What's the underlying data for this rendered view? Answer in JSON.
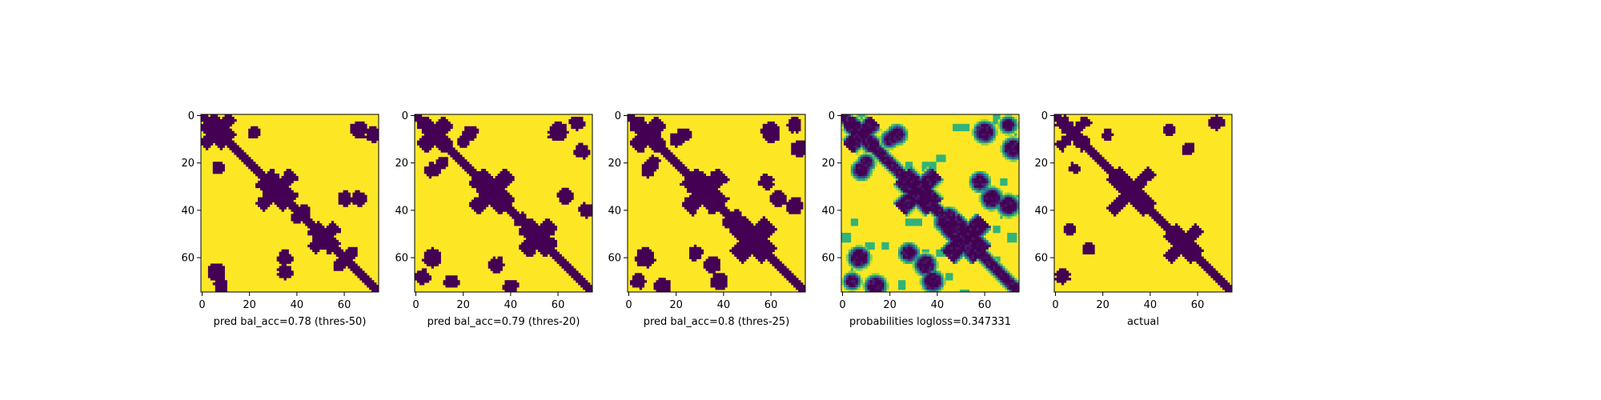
{
  "figure": {
    "panel_titles": [
      "pred bal_acc=0.78 (thres-50)",
      "pred bal_acc=0.79 (thres-20)",
      "pred bal_acc=0.8 (thres-25)",
      "probabilities logloss=0.347331",
      "actual"
    ]
  },
  "chart_data": [
    {
      "type": "heatmap",
      "title": "pred bal_acc=0.78 (thres-50)",
      "colormap": "viridis",
      "value_kind": "binary",
      "matrix_size": 75,
      "xlim": [
        0,
        74
      ],
      "ylim": [
        74,
        0
      ],
      "xticks": [
        0,
        20,
        40,
        60
      ],
      "yticks": [
        0,
        20,
        40,
        60
      ],
      "xlabel": "",
      "ylabel": "",
      "grid": false,
      "diagonal_band_halfwidth": 1.5,
      "features": [
        {
          "kind": "cross",
          "center": [
            5,
            8
          ],
          "arm": 5,
          "width": 1.5
        },
        {
          "kind": "cross",
          "center": [
            33,
            30
          ],
          "arm": 6,
          "width": 1.8
        },
        {
          "kind": "cross",
          "center": [
            52,
            51
          ],
          "arm": 5,
          "width": 1.8
        },
        {
          "kind": "blob",
          "center": [
            66,
            6
          ],
          "radius": 2.5
        },
        {
          "kind": "blob",
          "center": [
            22,
            7
          ],
          "radius": 1.5
        },
        {
          "kind": "blob",
          "center": [
            60,
            35
          ],
          "radius": 2
        },
        {
          "kind": "blob",
          "center": [
            8,
            72
          ],
          "radius": 2
        },
        {
          "kind": "blob",
          "center": [
            35,
            66
          ],
          "radius": 2
        },
        {
          "kind": "blob",
          "center": [
            40,
            43
          ],
          "radius": 1.5
        },
        {
          "kind": "blob",
          "center": [
            63,
            58
          ],
          "radius": 1.5
        }
      ]
    },
    {
      "type": "heatmap",
      "title": "pred bal_acc=0.79 (thres-20)",
      "colormap": "viridis",
      "value_kind": "binary",
      "matrix_size": 75,
      "xlim": [
        0,
        74
      ],
      "ylim": [
        74,
        0
      ],
      "xticks": [
        0,
        20,
        40,
        60
      ],
      "yticks": [
        0,
        20,
        40,
        60
      ],
      "xlabel": "",
      "ylabel": "",
      "grid": false,
      "diagonal_band_halfwidth": 1.7,
      "features": [
        {
          "kind": "cross",
          "center": [
            8,
            8
          ],
          "arm": 6,
          "width": 2.2
        },
        {
          "kind": "cross",
          "center": [
            33,
            31
          ],
          "arm": 7,
          "width": 2.2
        },
        {
          "kind": "cross",
          "center": [
            52,
            51
          ],
          "arm": 6,
          "width": 2.5
        },
        {
          "kind": "blob",
          "center": [
            60,
            7
          ],
          "radius": 3
        },
        {
          "kind": "blob",
          "center": [
            68,
            3
          ],
          "radius": 2
        },
        {
          "kind": "blob",
          "center": [
            23,
            7
          ],
          "radius": 2
        },
        {
          "kind": "blob",
          "center": [
            7,
            60
          ],
          "radius": 2.5
        },
        {
          "kind": "blob",
          "center": [
            63,
            34
          ],
          "radius": 2.2
        },
        {
          "kind": "blob",
          "center": [
            15,
            70
          ],
          "radius": 2
        },
        {
          "kind": "blob",
          "center": [
            40,
            72
          ],
          "radius": 2
        },
        {
          "kind": "blob",
          "center": [
            44,
            44
          ],
          "radius": 2
        },
        {
          "kind": "blob",
          "center": [
            11,
            20
          ],
          "radius": 1.5
        }
      ]
    },
    {
      "type": "heatmap",
      "title": "pred bal_acc=0.8 (thres-25)",
      "colormap": "viridis",
      "value_kind": "binary",
      "matrix_size": 75,
      "xlim": [
        0,
        74
      ],
      "ylim": [
        74,
        0
      ],
      "xticks": [
        0,
        20,
        40,
        60
      ],
      "yticks": [
        0,
        20,
        40,
        60
      ],
      "xlabel": "",
      "ylabel": "",
      "grid": false,
      "diagonal_band_halfwidth": 1.8,
      "features": [
        {
          "kind": "cross",
          "center": [
            8,
            8
          ],
          "arm": 6,
          "width": 2.5
        },
        {
          "kind": "cross",
          "center": [
            33,
            31
          ],
          "arm": 7,
          "width": 2.5
        },
        {
          "kind": "cross",
          "center": [
            53,
            52
          ],
          "arm": 7,
          "width": 3
        },
        {
          "kind": "blob",
          "center": [
            60,
            7
          ],
          "radius": 3
        },
        {
          "kind": "blob",
          "center": [
            70,
            4
          ],
          "radius": 2
        },
        {
          "kind": "blob",
          "center": [
            23,
            8
          ],
          "radius": 2
        },
        {
          "kind": "blob",
          "center": [
            7,
            60
          ],
          "radius": 3
        },
        {
          "kind": "blob",
          "center": [
            63,
            35
          ],
          "radius": 2.5
        },
        {
          "kind": "blob",
          "center": [
            14,
            72
          ],
          "radius": 2.5
        },
        {
          "kind": "blob",
          "center": [
            38,
            70
          ],
          "radius": 2.5
        },
        {
          "kind": "blob",
          "center": [
            45,
            43
          ],
          "radius": 2
        },
        {
          "kind": "blob",
          "center": [
            28,
            58
          ],
          "radius": 2
        },
        {
          "kind": "blob",
          "center": [
            10,
            20
          ],
          "radius": 1.8
        }
      ]
    },
    {
      "type": "heatmap",
      "title": "probabilities logloss=0.347331",
      "colormap": "viridis",
      "value_kind": "continuous",
      "value_range": [
        0,
        1
      ],
      "matrix_size": 75,
      "xlim": [
        0,
        74
      ],
      "ylim": [
        74,
        0
      ],
      "xticks": [
        0,
        20,
        40,
        60
      ],
      "yticks": [
        0,
        20,
        40,
        60
      ],
      "xlabel": "",
      "ylabel": "",
      "grid": false,
      "diagonal_band_halfwidth": 2.5,
      "features": [
        {
          "kind": "cross",
          "center": [
            8,
            8
          ],
          "arm": 6,
          "width": 2.5
        },
        {
          "kind": "cross",
          "center": [
            33,
            31
          ],
          "arm": 7,
          "width": 2.5
        },
        {
          "kind": "cross",
          "center": [
            53,
            51
          ],
          "arm": 7,
          "width": 3
        },
        {
          "kind": "blob",
          "center": [
            60,
            7
          ],
          "radius": 3
        },
        {
          "kind": "blob",
          "center": [
            70,
            4
          ],
          "radius": 2
        },
        {
          "kind": "blob",
          "center": [
            23,
            8
          ],
          "radius": 2.5
        },
        {
          "kind": "blob",
          "center": [
            7,
            60
          ],
          "radius": 3
        },
        {
          "kind": "blob",
          "center": [
            63,
            35
          ],
          "radius": 3
        },
        {
          "kind": "blob",
          "center": [
            14,
            72
          ],
          "radius": 3
        },
        {
          "kind": "blob",
          "center": [
            38,
            70
          ],
          "radius": 3
        },
        {
          "kind": "blob",
          "center": [
            45,
            43
          ],
          "radius": 2.5
        },
        {
          "kind": "blob",
          "center": [
            28,
            58
          ],
          "radius": 2.5
        },
        {
          "kind": "blob",
          "center": [
            10,
            20
          ],
          "radius": 2
        }
      ]
    },
    {
      "type": "heatmap",
      "title": "actual",
      "colormap": "viridis",
      "value_kind": "binary",
      "matrix_size": 75,
      "xlim": [
        0,
        74
      ],
      "ylim": [
        74,
        0
      ],
      "xticks": [
        0,
        20,
        40,
        60
      ],
      "yticks": [
        0,
        20,
        40,
        60
      ],
      "xlabel": "",
      "ylabel": "",
      "grid": false,
      "diagonal_band_halfwidth": 1.5,
      "features": [
        {
          "kind": "cross",
          "center": [
            8,
            7
          ],
          "arm": 6,
          "width": 1.2
        },
        {
          "kind": "cross",
          "center": [
            33,
            31
          ],
          "arm": 8,
          "width": 1.5
        },
        {
          "kind": "cross",
          "center": [
            55,
            53
          ],
          "arm": 6,
          "width": 1.5
        },
        {
          "kind": "blob",
          "center": [
            68,
            3
          ],
          "radius": 1.5
        },
        {
          "kind": "blob",
          "center": [
            3,
            68
          ],
          "radius": 2
        },
        {
          "kind": "blob",
          "center": [
            6,
            48
          ],
          "radius": 1.5
        },
        {
          "kind": "blob",
          "center": [
            14,
            56
          ],
          "radius": 1.5
        },
        {
          "kind": "blob",
          "center": [
            48,
            6
          ],
          "radius": 1.5
        },
        {
          "kind": "blob",
          "center": [
            22,
            8
          ],
          "radius": 1.2
        }
      ]
    }
  ]
}
